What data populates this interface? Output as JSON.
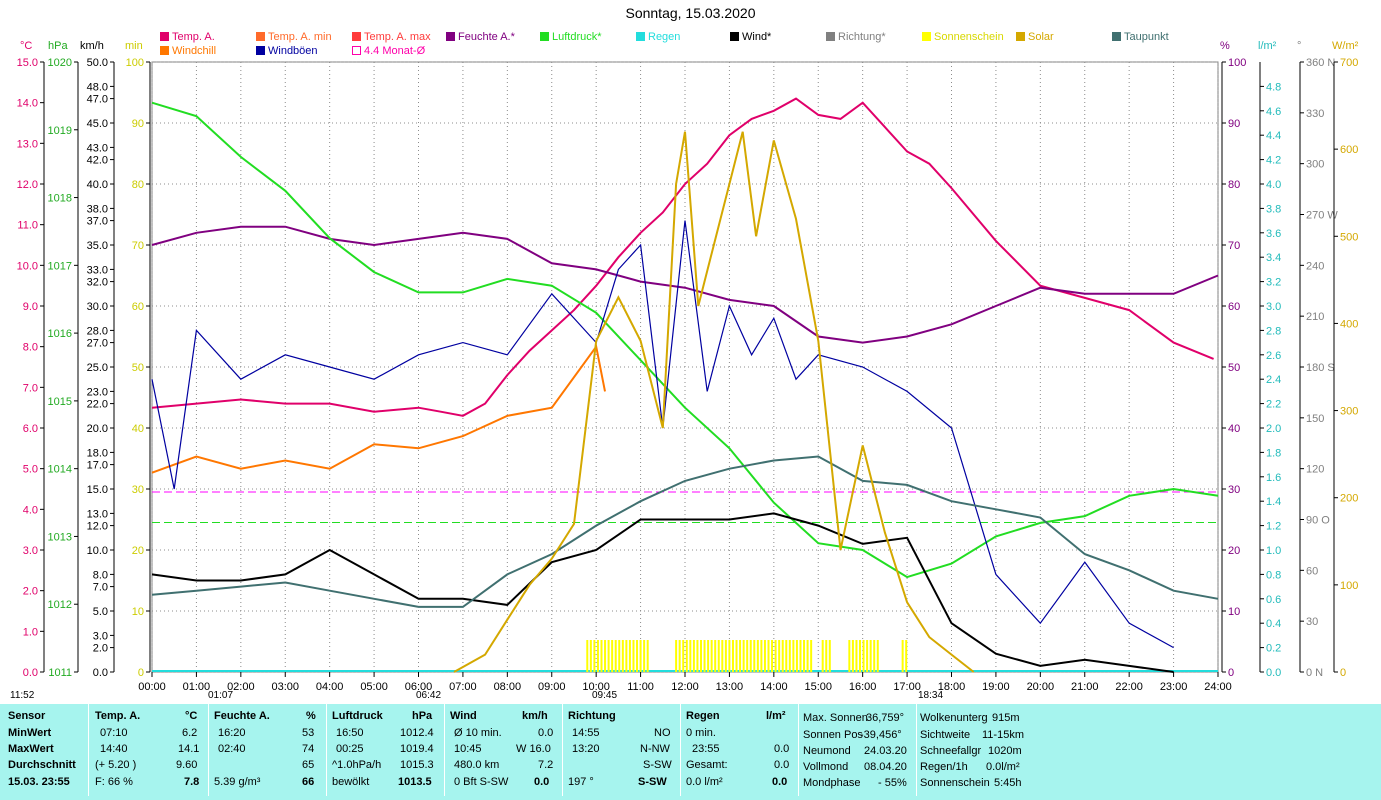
{
  "title": "Sonntag, 15.03.2020",
  "legend": [
    {
      "label": "Temp. A.",
      "color": "#e0006a"
    },
    {
      "label": "Temp. A. min",
      "color": "#ff6a2a"
    },
    {
      "label": "Temp. A. max",
      "color": "#ff3b3b"
    },
    {
      "label": "Feuchte A.*",
      "color": "#800080"
    },
    {
      "label": "Luftdruck*",
      "color": "#22dd22"
    },
    {
      "label": "Regen",
      "color": "#22dddd"
    },
    {
      "label": "Wind*",
      "color": "#000000"
    },
    {
      "label": "Richtung*",
      "color": "#808080"
    },
    {
      "label": "Sonnenschein",
      "color": "#ffff00"
    },
    {
      "label": "Solar",
      "color": "#d4a800"
    },
    {
      "label": "Taupunkt",
      "color": "#407070"
    },
    {
      "label": "Windchill",
      "color": "#ff7700"
    },
    {
      "label": "Windböen",
      "color": "#0000a0"
    },
    {
      "label": "4.4 Monat-Ø",
      "color": "#ff00aa"
    }
  ],
  "units": {
    "c": "°C",
    "hpa": "hPa",
    "kmh": "km/h",
    "min": "min",
    "pct": "%",
    "lm2": "l/m²",
    "deg": "°",
    "wm2": "W/m²"
  },
  "chart_data": {
    "type": "line",
    "x_range": [
      "00:00",
      "24:00"
    ],
    "x_ticks": [
      "00:00",
      "01:00",
      "02:00",
      "03:00",
      "04:00",
      "05:00",
      "06:00",
      "07:00",
      "08:00",
      "09:00",
      "10:00",
      "11:00",
      "12:00",
      "13:00",
      "14:00",
      "15:00",
      "16:00",
      "17:00",
      "18:00",
      "19:00",
      "20:00",
      "21:00",
      "22:00",
      "23:00",
      "24:00"
    ],
    "axes": {
      "temp_c": {
        "ticks": [
          "0.0",
          "1.0",
          "2.0",
          "3.0",
          "4.0",
          "5.0",
          "6.0",
          "7.0",
          "8.0",
          "9.0",
          "10.0",
          "11.0",
          "12.0",
          "13.0",
          "14.0",
          "15.0"
        ],
        "range": [
          0,
          15
        ]
      },
      "pressure_hpa": {
        "ticks": [
          "1011",
          "1012",
          "1013",
          "1014",
          "1015",
          "1016",
          "1017",
          "1018",
          "1019",
          "1020"
        ],
        "range": [
          1011,
          1020
        ]
      },
      "wind_kmh": {
        "ticks": [
          "0.0",
          "2.0",
          "3.0",
          "5.0",
          "7.0",
          "8.0",
          "10.0",
          "12.0",
          "13.0",
          "15.0",
          "17.0",
          "18.0",
          "20.0",
          "22.0",
          "23.0",
          "25.0",
          "27.0",
          "28.0",
          "30.0",
          "32.0",
          "33.0",
          "35.0",
          "37.0",
          "38.0",
          "40.0",
          "42.0",
          "43.0",
          "45.0",
          "47.0",
          "48.0",
          "50.0"
        ],
        "range": [
          0,
          50
        ]
      },
      "sunshine_min": {
        "ticks": [
          "0",
          "10",
          "20",
          "30",
          "40",
          "50",
          "60",
          "70",
          "80",
          "90",
          "100"
        ],
        "range": [
          0,
          100
        ]
      },
      "humidity_pct": {
        "ticks": [
          "0",
          "10",
          "20",
          "30",
          "40",
          "50",
          "60",
          "70",
          "80",
          "90",
          "100"
        ],
        "range": [
          0,
          100
        ]
      },
      "rain_lm2": {
        "ticks": [
          "0.0",
          "0.2",
          "0.4",
          "0.6",
          "0.8",
          "1.0",
          "1.2",
          "1.4",
          "1.6",
          "1.8",
          "2.0",
          "2.2",
          "2.4",
          "2.6",
          "2.8",
          "3.0",
          "3.2",
          "3.4",
          "3.6",
          "3.8",
          "4.0",
          "4.2",
          "4.4",
          "4.6",
          "4.8"
        ],
        "range": [
          0,
          5
        ]
      },
      "direction_deg": {
        "ticks": [
          "0 N",
          "30",
          "60",
          "90 O",
          "120",
          "150",
          "180 S",
          "210",
          "240",
          "270 W",
          "300",
          "330",
          "360 N"
        ],
        "range": [
          0,
          360
        ]
      },
      "solar_wm2": {
        "ticks": [
          "0",
          "100",
          "200",
          "300",
          "400",
          "500",
          "600",
          "700"
        ],
        "range": [
          0,
          700
        ]
      }
    },
    "series": [
      {
        "name": "Temp. A.",
        "axis": "temp_c",
        "color": "#e0006a",
        "points": [
          [
            0,
            6.5
          ],
          [
            1,
            6.6
          ],
          [
            2,
            6.7
          ],
          [
            3,
            6.6
          ],
          [
            4,
            6.6
          ],
          [
            5,
            6.4
          ],
          [
            6,
            6.5
          ],
          [
            6.5,
            6.4
          ],
          [
            7,
            6.3
          ],
          [
            7.5,
            6.6
          ],
          [
            8,
            7.3
          ],
          [
            8.5,
            7.9
          ],
          [
            9,
            8.4
          ],
          [
            9.5,
            8.9
          ],
          [
            10,
            9.5
          ],
          [
            10.5,
            10.2
          ],
          [
            11,
            10.8
          ],
          [
            11.5,
            11.3
          ],
          [
            12,
            12.0
          ],
          [
            12.5,
            12.5
          ],
          [
            13,
            13.2
          ],
          [
            13.5,
            13.6
          ],
          [
            14,
            13.8
          ],
          [
            14.5,
            14.1
          ],
          [
            15,
            13.7
          ],
          [
            15.5,
            13.6
          ],
          [
            16,
            14.0
          ],
          [
            16.5,
            13.4
          ],
          [
            17,
            12.8
          ],
          [
            17.5,
            12.5
          ],
          [
            18,
            11.9
          ],
          [
            19,
            10.6
          ],
          [
            20,
            9.5
          ],
          [
            21,
            9.2
          ],
          [
            22,
            8.9
          ],
          [
            23,
            8.1
          ],
          [
            23.9,
            7.7
          ]
        ]
      },
      {
        "name": "Windchill",
        "axis": "temp_c",
        "color": "#ff7700",
        "points": [
          [
            0,
            4.9
          ],
          [
            1,
            5.3
          ],
          [
            2,
            5.0
          ],
          [
            3,
            5.2
          ],
          [
            4,
            5.0
          ],
          [
            5,
            5.6
          ],
          [
            6,
            5.5
          ],
          [
            7,
            5.8
          ],
          [
            8,
            6.3
          ],
          [
            9,
            6.5
          ],
          [
            10,
            8.0
          ],
          [
            10.2,
            6.9
          ]
        ]
      },
      {
        "name": "Feuchte A.*",
        "axis": "humidity_pct",
        "color": "#800080",
        "points": [
          [
            0,
            70
          ],
          [
            1,
            72
          ],
          [
            2,
            73
          ],
          [
            3,
            73
          ],
          [
            4,
            71
          ],
          [
            5,
            70
          ],
          [
            6,
            71
          ],
          [
            7,
            72
          ],
          [
            8,
            71
          ],
          [
            9,
            67
          ],
          [
            10,
            66
          ],
          [
            11,
            64
          ],
          [
            12,
            63
          ],
          [
            13,
            61
          ],
          [
            14,
            60
          ],
          [
            15,
            55
          ],
          [
            16,
            54
          ],
          [
            17,
            55
          ],
          [
            18,
            57
          ],
          [
            19,
            60
          ],
          [
            20,
            63
          ],
          [
            21,
            62
          ],
          [
            22,
            62
          ],
          [
            23,
            62
          ],
          [
            24,
            65
          ]
        ]
      },
      {
        "name": "Luftdruck*",
        "axis": "pressure_hpa",
        "color": "#22dd22",
        "points": [
          [
            0,
            1019.4
          ],
          [
            1,
            1019.2
          ],
          [
            2,
            1018.6
          ],
          [
            3,
            1018.1
          ],
          [
            4,
            1017.4
          ],
          [
            5,
            1016.9
          ],
          [
            6,
            1016.6
          ],
          [
            7,
            1016.6
          ],
          [
            8,
            1016.8
          ],
          [
            9,
            1016.7
          ],
          [
            10,
            1016.3
          ],
          [
            11,
            1015.6
          ],
          [
            12,
            1014.9
          ],
          [
            13,
            1014.3
          ],
          [
            14,
            1013.5
          ],
          [
            15,
            1012.9
          ],
          [
            16,
            1012.8
          ],
          [
            17,
            1012.4
          ],
          [
            18,
            1012.6
          ],
          [
            19,
            1013.0
          ],
          [
            20,
            1013.2
          ],
          [
            21,
            1013.3
          ],
          [
            22,
            1013.6
          ],
          [
            23,
            1013.7
          ],
          [
            24,
            1013.6
          ]
        ]
      },
      {
        "name": "Wind*",
        "axis": "wind_kmh",
        "color": "#000000",
        "points": [
          [
            0,
            8
          ],
          [
            1,
            7.5
          ],
          [
            2,
            7.5
          ],
          [
            3,
            8
          ],
          [
            4,
            10
          ],
          [
            5,
            8
          ],
          [
            6,
            6
          ],
          [
            7,
            6
          ],
          [
            8,
            5.5
          ],
          [
            9,
            9
          ],
          [
            10,
            10
          ],
          [
            11,
            12.5
          ],
          [
            12,
            12.5
          ],
          [
            13,
            12.5
          ],
          [
            14,
            13
          ],
          [
            15,
            12
          ],
          [
            16,
            10.5
          ],
          [
            17,
            11
          ],
          [
            18,
            4
          ],
          [
            19,
            1.5
          ],
          [
            20,
            0.5
          ],
          [
            21,
            1
          ],
          [
            22,
            0.5
          ],
          [
            23,
            0
          ]
        ]
      },
      {
        "name": "Windböen",
        "axis": "wind_kmh",
        "color": "#0000a0",
        "points": [
          [
            0,
            24
          ],
          [
            0.5,
            15
          ],
          [
            1,
            28
          ],
          [
            2,
            24
          ],
          [
            3,
            26
          ],
          [
            4,
            25
          ],
          [
            5,
            24
          ],
          [
            6,
            26
          ],
          [
            7,
            27
          ],
          [
            8,
            26
          ],
          [
            9,
            31
          ],
          [
            10,
            27
          ],
          [
            10.5,
            33
          ],
          [
            11,
            35
          ],
          [
            11.5,
            20
          ],
          [
            12,
            37
          ],
          [
            12.5,
            23
          ],
          [
            13,
            30
          ],
          [
            13.5,
            26
          ],
          [
            14,
            29
          ],
          [
            14.5,
            24
          ],
          [
            15,
            26
          ],
          [
            16,
            25
          ],
          [
            17,
            23
          ],
          [
            18,
            20
          ],
          [
            19,
            8
          ],
          [
            20,
            4
          ],
          [
            21,
            9
          ],
          [
            22,
            4
          ],
          [
            23,
            2
          ]
        ]
      },
      {
        "name": "Taupunkt",
        "axis": "temp_c",
        "color": "#407070",
        "points": [
          [
            0,
            1.9
          ],
          [
            1,
            2.0
          ],
          [
            2,
            2.1
          ],
          [
            3,
            2.2
          ],
          [
            4,
            2.0
          ],
          [
            5,
            1.8
          ],
          [
            6,
            1.6
          ],
          [
            7,
            1.6
          ],
          [
            8,
            2.4
          ],
          [
            9,
            2.9
          ],
          [
            10,
            3.6
          ],
          [
            11,
            4.2
          ],
          [
            12,
            4.7
          ],
          [
            13,
            5.0
          ],
          [
            14,
            5.2
          ],
          [
            15,
            5.3
          ],
          [
            16,
            4.7
          ],
          [
            17,
            4.6
          ],
          [
            18,
            4.2
          ],
          [
            19,
            4.0
          ],
          [
            20,
            3.8
          ],
          [
            21,
            2.9
          ],
          [
            22,
            2.5
          ],
          [
            23,
            2.0
          ],
          [
            24,
            1.8
          ]
        ]
      },
      {
        "name": "Solar",
        "axis": "solar_wm2",
        "color": "#d4a800",
        "points": [
          [
            6.8,
            0
          ],
          [
            7.5,
            20
          ],
          [
            8,
            60
          ],
          [
            8.5,
            100
          ],
          [
            9,
            130
          ],
          [
            9.5,
            170
          ],
          [
            10,
            380
          ],
          [
            10.5,
            430
          ],
          [
            11,
            380
          ],
          [
            11.5,
            280
          ],
          [
            11.8,
            560
          ],
          [
            12,
            620
          ],
          [
            12.3,
            420
          ],
          [
            12.6,
            480
          ],
          [
            13,
            560
          ],
          [
            13.3,
            620
          ],
          [
            13.6,
            500
          ],
          [
            14,
            610
          ],
          [
            14.5,
            520
          ],
          [
            15,
            380
          ],
          [
            15.5,
            140
          ],
          [
            16,
            260
          ],
          [
            16.5,
            160
          ],
          [
            17,
            80
          ],
          [
            17.5,
            40
          ],
          [
            18,
            20
          ],
          [
            18.5,
            0
          ]
        ]
      }
    ],
    "dashed_lines": [
      {
        "axis": "humidity_pct",
        "value": 29.5,
        "color": "#ff00ff"
      },
      {
        "axis": "humidity_pct",
        "value": 24.5,
        "color": "#22dd22"
      }
    ]
  },
  "markers": {
    "left": "11:52",
    "m1": "01:07",
    "m2": "06:42",
    "m3": "09:45",
    "m4": "18:34"
  },
  "table": {
    "rows": [
      "Sensor",
      "MinWert",
      "MaxWert",
      "Durchschnitt",
      "15.03. 23:55"
    ],
    "temp": {
      "header": "Temp. A.",
      "unit": "°C",
      "min_time": "07:10",
      "min": "6.2",
      "max_time": "14:40",
      "max": "14.1",
      "avg_note": "(+ 5.20 )",
      "avg": "9.60",
      "f": "F: 66 %",
      "cur": "7.8"
    },
    "hum": {
      "header": "Feuchte A.",
      "unit": "%",
      "min_time": "16:20",
      "min": "53",
      "max_time": "02:40",
      "max": "74",
      "avg": "65",
      "abs": "5.39 g/m³",
      "cur": "66"
    },
    "press": {
      "header": "Luftdruck",
      "unit": "hPa",
      "min_time": "16:50",
      "min": "1012.4",
      "max_time": "00:25",
      "max": "1019.4",
      "trend": "^1.0hPa/h",
      "avg": "1015.3",
      "state": "bewölkt",
      "cur": "1013.5"
    },
    "wind": {
      "header": "Wind",
      "unit": "km/h",
      "l1": "Ø 10 min.",
      "v1": "0.0",
      "l2": "10:45",
      "v2": "W 16.0",
      "l3": "480.0 km",
      "v3": "7.2",
      "l4": "0 Bft S-SW",
      "v4": "0.0"
    },
    "dir": {
      "header": "Richtung",
      "l1": "14:55",
      "v1": "NO",
      "l2": "13:20",
      "v2": "N-NW",
      "v3": "S-SW",
      "l4": "197 °",
      "v4": "S-SW"
    },
    "rain": {
      "header": "Regen",
      "unit": "l/m²",
      "l1": "0 min.",
      "l2": "23:55",
      "v2": "0.0",
      "l3": "Gesamt:",
      "v3": "0.0",
      "l4": "0.0 l/m²",
      "v4": "0.0"
    },
    "astro": [
      [
        "Max. Sonnen",
        "36,759°"
      ],
      [
        "Sonnen Pos",
        "-39,456°"
      ],
      [
        "Neumond",
        "24.03.20"
      ],
      [
        "Vollmond",
        "08.04.20"
      ],
      [
        "Mondphase",
        "- 55%"
      ]
    ],
    "misc": [
      [
        "Wolkenunterg",
        "915m"
      ],
      [
        "Sichtweite",
        "11-15km"
      ],
      [
        "Schneefallgr",
        "1020m"
      ],
      [
        "Regen/1h",
        "0.0l/m²"
      ],
      [
        "Sonnenschein",
        "5:45h"
      ]
    ]
  }
}
